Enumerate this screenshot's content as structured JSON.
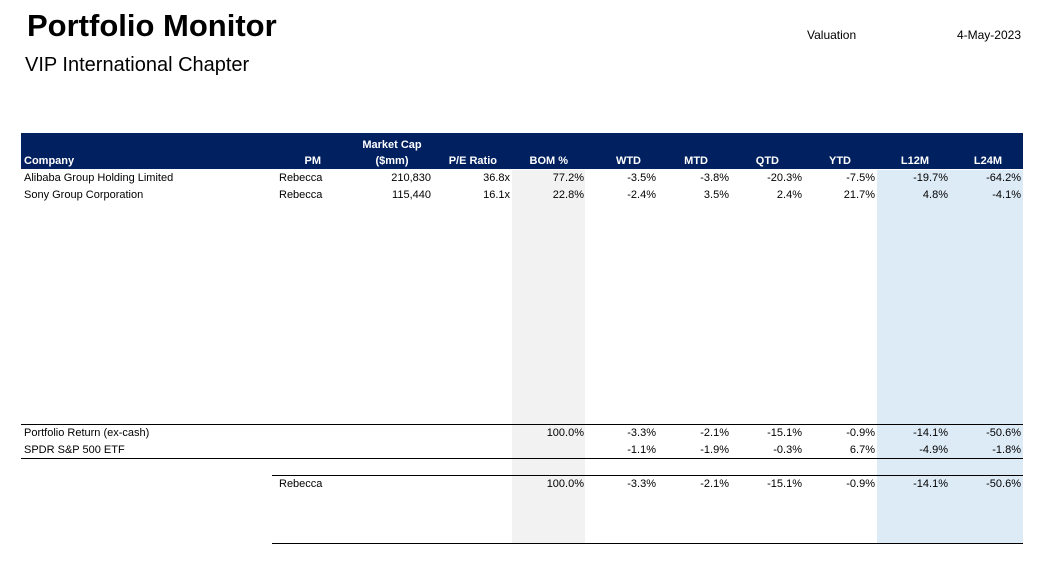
{
  "report": {
    "title": "Portfolio Monitor",
    "subtitle": "VIP International Chapter",
    "valuation_label": "Valuation",
    "valuation_date": "4-May-2023"
  },
  "columns": {
    "company": "Company",
    "pm": "PM",
    "mcap_line1": "Market Cap",
    "mcap_line2": "($mm)",
    "pe": "P/E Ratio",
    "bom": "BOM %",
    "wtd": "WTD",
    "mtd": "MTD",
    "qtd": "QTD",
    "ytd": "YTD",
    "l12m": "L12M",
    "l24m": "L24M"
  },
  "holdings": [
    {
      "company": "Alibaba Group Holding Limited",
      "pm": "Rebecca",
      "mcap": "210,830",
      "pe": "36.8x",
      "bom": "77.2%",
      "wtd": "-3.5%",
      "mtd": "-3.8%",
      "qtd": "-20.3%",
      "ytd": "-7.5%",
      "l12m": "-19.7%",
      "l24m": "-64.2%"
    },
    {
      "company": "Sony Group Corporation",
      "pm": "Rebecca",
      "mcap": "115,440",
      "pe": "16.1x",
      "bom": "22.8%",
      "wtd": "-2.4%",
      "mtd": "3.5%",
      "qtd": "2.4%",
      "ytd": "21.7%",
      "l12m": "4.8%",
      "l24m": "-4.1%"
    }
  ],
  "portfolio_return": {
    "label": "Portfolio Return (ex-cash)",
    "bom": "100.0%",
    "wtd": "-3.3%",
    "mtd": "-2.1%",
    "qtd": "-15.1%",
    "ytd": "-0.9%",
    "l12m": "-14.1%",
    "l24m": "-50.6%"
  },
  "benchmark": {
    "label": "SPDR S&P 500 ETF",
    "wtd": "-1.1%",
    "mtd": "-1.9%",
    "qtd": "-0.3%",
    "ytd": "6.7%",
    "l12m": "-4.9%",
    "l24m": "-1.8%"
  },
  "pm_summary": {
    "pm": "Rebecca",
    "bom": "100.0%",
    "wtd": "-3.3%",
    "mtd": "-2.1%",
    "qtd": "-15.1%",
    "ytd": "-0.9%",
    "l12m": "-14.1%",
    "l24m": "-50.6%"
  }
}
